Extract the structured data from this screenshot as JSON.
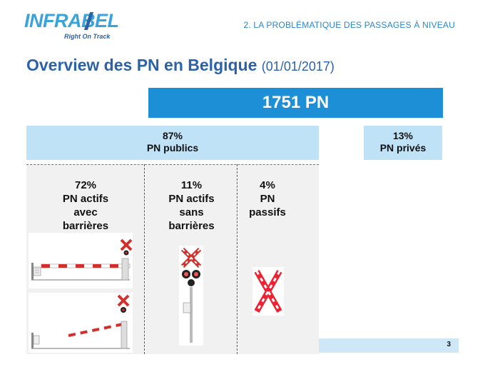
{
  "logo": {
    "text": "INFRABEL",
    "tagline": "Right On Track"
  },
  "section_title": "2. LA PROBLÉMATIQUE DES PASSAGES À NIVEAU",
  "title": {
    "main": "Overview des PN en Belgique",
    "date": "(01/01/2017)"
  },
  "total": "1751 PN",
  "public": {
    "percent": "87%",
    "label": "PN publics"
  },
  "private": {
    "percent": "13%",
    "label": "PN privés"
  },
  "categories": [
    {
      "percent": "72%",
      "lines": [
        "PN actifs",
        "avec",
        "barrières"
      ]
    },
    {
      "percent": "11%",
      "lines": [
        "PN actifs",
        "sans",
        "barrières"
      ]
    },
    {
      "percent": "4%",
      "lines": [
        "PN",
        "passifs"
      ]
    }
  ],
  "page_number": "3",
  "colors": {
    "brand_blue": "#2c62a8",
    "light_blue": "#3aa3d9",
    "total_fill": "#1d8fd6",
    "box_fill": "#bfe2f7",
    "barrier_red": "#d0312d"
  },
  "icons": [
    "barrier-crossing-image",
    "st-andrews-cross-signal-image",
    "passive-cross-sign-image"
  ]
}
